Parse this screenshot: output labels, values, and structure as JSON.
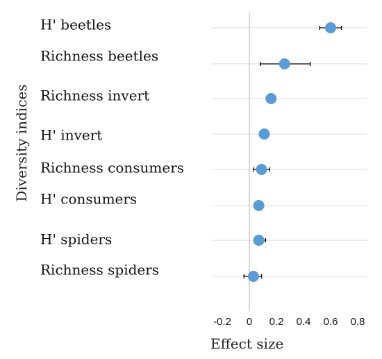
{
  "chart_data": {
    "type": "scatter",
    "orientation": "horizontal-forest-plot",
    "xlabel": "Effect size",
    "ylabel": "Diversity indices",
    "xlim": [
      -0.2,
      0.8
    ],
    "x_ticks": [
      "-0.2",
      "0",
      "0.2",
      "0.4",
      "0.6",
      "0.8"
    ],
    "grid": "horizontal-lines",
    "colors": {
      "point": "#5b9bd5",
      "error_bar": "#000000",
      "grid": "#d9d9d9",
      "zero_line": "#bfbfbf"
    },
    "categories": [
      "H' beetles",
      "Richness beetles",
      "Richness invert",
      "H' invert",
      "Richness consumers",
      "H' consumers",
      "H' spiders",
      "Richness spiders"
    ],
    "values": [
      0.6,
      0.26,
      0.16,
      0.11,
      0.09,
      0.07,
      0.07,
      0.03
    ],
    "ci_low": [
      0.52,
      0.08,
      0.16,
      0.11,
      0.03,
      0.07,
      0.06,
      -0.04
    ],
    "ci_high": [
      0.68,
      0.45,
      0.16,
      0.11,
      0.15,
      0.07,
      0.12,
      0.09
    ]
  }
}
